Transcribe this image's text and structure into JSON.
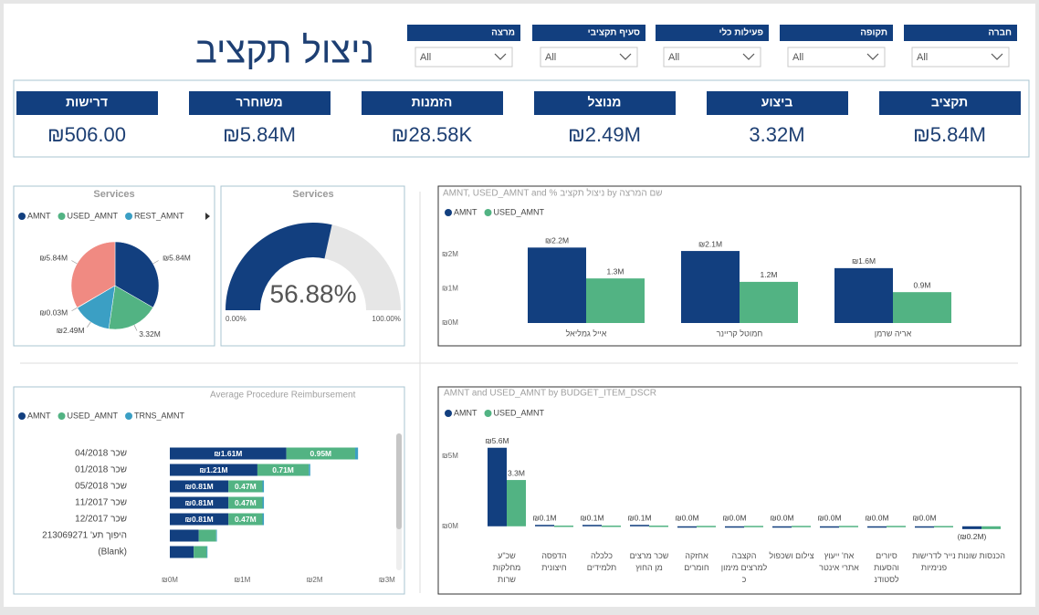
{
  "title": "ניצול תקציב",
  "filters": [
    {
      "label": "מרצה",
      "value": "All"
    },
    {
      "label": "סעיף תקציבי",
      "value": "All"
    },
    {
      "label": "פעילות כלי",
      "value": "All"
    },
    {
      "label": "תקופה",
      "value": "All"
    },
    {
      "label": "חברה",
      "value": "All"
    }
  ],
  "kpis": [
    {
      "label": "דרישות",
      "value": "₪506.00"
    },
    {
      "label": "משוחרר",
      "value": "₪5.84M"
    },
    {
      "label": "הזמנות",
      "value": "₪28.58K"
    },
    {
      "label": "מנוצל",
      "value": "₪2.49M"
    },
    {
      "label": "ביצוע",
      "value": "3.32M"
    },
    {
      "label": "תקציב",
      "value": "₪5.84M"
    }
  ],
  "chart_data": [
    {
      "type": "pie",
      "title": "Services",
      "categories": [
        "AMNT",
        "USED_AMNT",
        "REST_AMNT",
        null,
        null
      ],
      "values": [
        5.84,
        3.32,
        2.49,
        0.03,
        5.84
      ],
      "value_labels": [
        "₪5.84M",
        "3.32M",
        "₪2.49M",
        "₪0.03M",
        "₪5.84M"
      ],
      "colors": [
        "#123f7f",
        "#52b383",
        "#3b9fc4",
        "#e66c37",
        "#f08a82"
      ]
    },
    {
      "type": "gauge",
      "title": "Services",
      "value": 56.88,
      "value_label": "56.88%",
      "range": [
        {
          "value": 0,
          "label": "0.00%"
        },
        {
          "value": 100,
          "label": "100.00%"
        }
      ],
      "color": "#123f7f",
      "track_color": "#e6e6e6"
    },
    {
      "type": "bar",
      "title": "AMNT, USED_AMNT and % ניצול תקציב by שם המרצה",
      "categories": [
        "אייל גמליאל",
        "חמוטל קריינר",
        "אריה שרמן"
      ],
      "series": [
        {
          "name": "AMNT",
          "color": "#123f7f",
          "values": [
            2.2,
            2.1,
            1.6
          ],
          "value_labels": [
            "₪2.2M",
            "₪2.1M",
            "₪1.6M"
          ]
        },
        {
          "name": "USED_AMNT",
          "color": "#52b383",
          "values": [
            1.3,
            1.2,
            0.9
          ],
          "value_labels": [
            "1.3M",
            "1.2M",
            "0.9M"
          ]
        }
      ],
      "ylim": [
        0,
        2.9
      ],
      "yticks": [
        {
          "value": 0,
          "label": "₪0M"
        },
        {
          "value": 1,
          "label": "₪1M"
        },
        {
          "value": 2,
          "label": "₪2M"
        }
      ],
      "grid": false
    },
    {
      "type": "bar",
      "orientation": "horizontal",
      "stacked": true,
      "title": "Average Procedure Reimbursement",
      "categories": [
        "שכר 04/2018",
        "שכר 01/2018",
        "שכר 05/2018",
        "שכר 11/2017",
        "שכר 12/2017",
        "היפוך תע' 213069271",
        "(Blank)"
      ],
      "series": [
        {
          "name": "AMNT",
          "color": "#123f7f",
          "values": [
            1.61,
            1.21,
            0.81,
            0.81,
            0.81,
            0.4,
            0.33
          ],
          "value_labels": [
            "₪1.61M",
            "₪1.21M",
            "₪0.81M",
            "₪0.81M",
            "₪0.81M",
            null,
            null
          ]
        },
        {
          "name": "USED_AMNT",
          "color": "#52b383",
          "values": [
            0.95,
            0.71,
            0.47,
            0.47,
            0.47,
            0.24,
            0.18
          ],
          "value_labels": [
            "0.95M",
            "0.71M",
            "0.47M",
            "0.47M",
            "0.47M",
            null,
            null
          ]
        },
        {
          "name": "TRNS_AMNT",
          "color": "#3b9fc4",
          "values": [
            0.04,
            0.02,
            0.02,
            0.02,
            0.02,
            0.01,
            0.01
          ]
        }
      ],
      "xlim": [
        0,
        3.1
      ],
      "xticks": [
        {
          "value": 0,
          "label": "₪0M"
        },
        {
          "value": 1,
          "label": "₪1M"
        },
        {
          "value": 2,
          "label": "₪2M"
        },
        {
          "value": 3,
          "label": "₪3M"
        }
      ],
      "grid": false
    },
    {
      "type": "bar",
      "title": "AMNT and USED_AMNT by BUDGET_ITEM_DSCR",
      "categories": [
        "שכ\"ע מחלקות שרות",
        "הדפסה חיצונית",
        "כלכלה תלמידים",
        "שכר מרצים מן החוץ",
        "אחזקה חומרים",
        "הקצבה למרצים מימון כ",
        "צילום ושכפול",
        "אח' ייעוץ אתרי אינטר",
        "סיורים והסעות לסטודנ",
        "נייר לדרישות פנימיות",
        "הכנסות שונות"
      ],
      "series": [
        {
          "name": "AMNT",
          "color": "#123f7f",
          "values": [
            5.6,
            0.1,
            0.1,
            0.1,
            0.0,
            0.0,
            0.0,
            0.0,
            0.0,
            0.0,
            -0.2
          ],
          "value_labels": [
            "₪5.6M",
            "₪0.1M",
            "₪0.1M",
            "₪0.1M",
            "₪0.0M",
            "₪0.0M",
            "₪0.0M",
            "₪0.0M",
            "₪0.0M",
            "₪0.0M",
            "(₪0.2M)"
          ]
        },
        {
          "name": "USED_AMNT",
          "color": "#52b383",
          "values": [
            3.3,
            0.05,
            0.05,
            0.05,
            0.03,
            0.03,
            0.03,
            0.03,
            0.03,
            0.02,
            -0.2
          ],
          "value_labels": [
            "3.3M",
            null,
            null,
            null,
            null,
            null,
            null,
            null,
            null,
            null,
            null
          ]
        }
      ],
      "ylim": [
        -0.6,
        6.2
      ],
      "yticks": [
        {
          "value": 0,
          "label": "₪0M"
        },
        {
          "value": 5,
          "label": "₪5M"
        }
      ],
      "grid": false
    }
  ]
}
